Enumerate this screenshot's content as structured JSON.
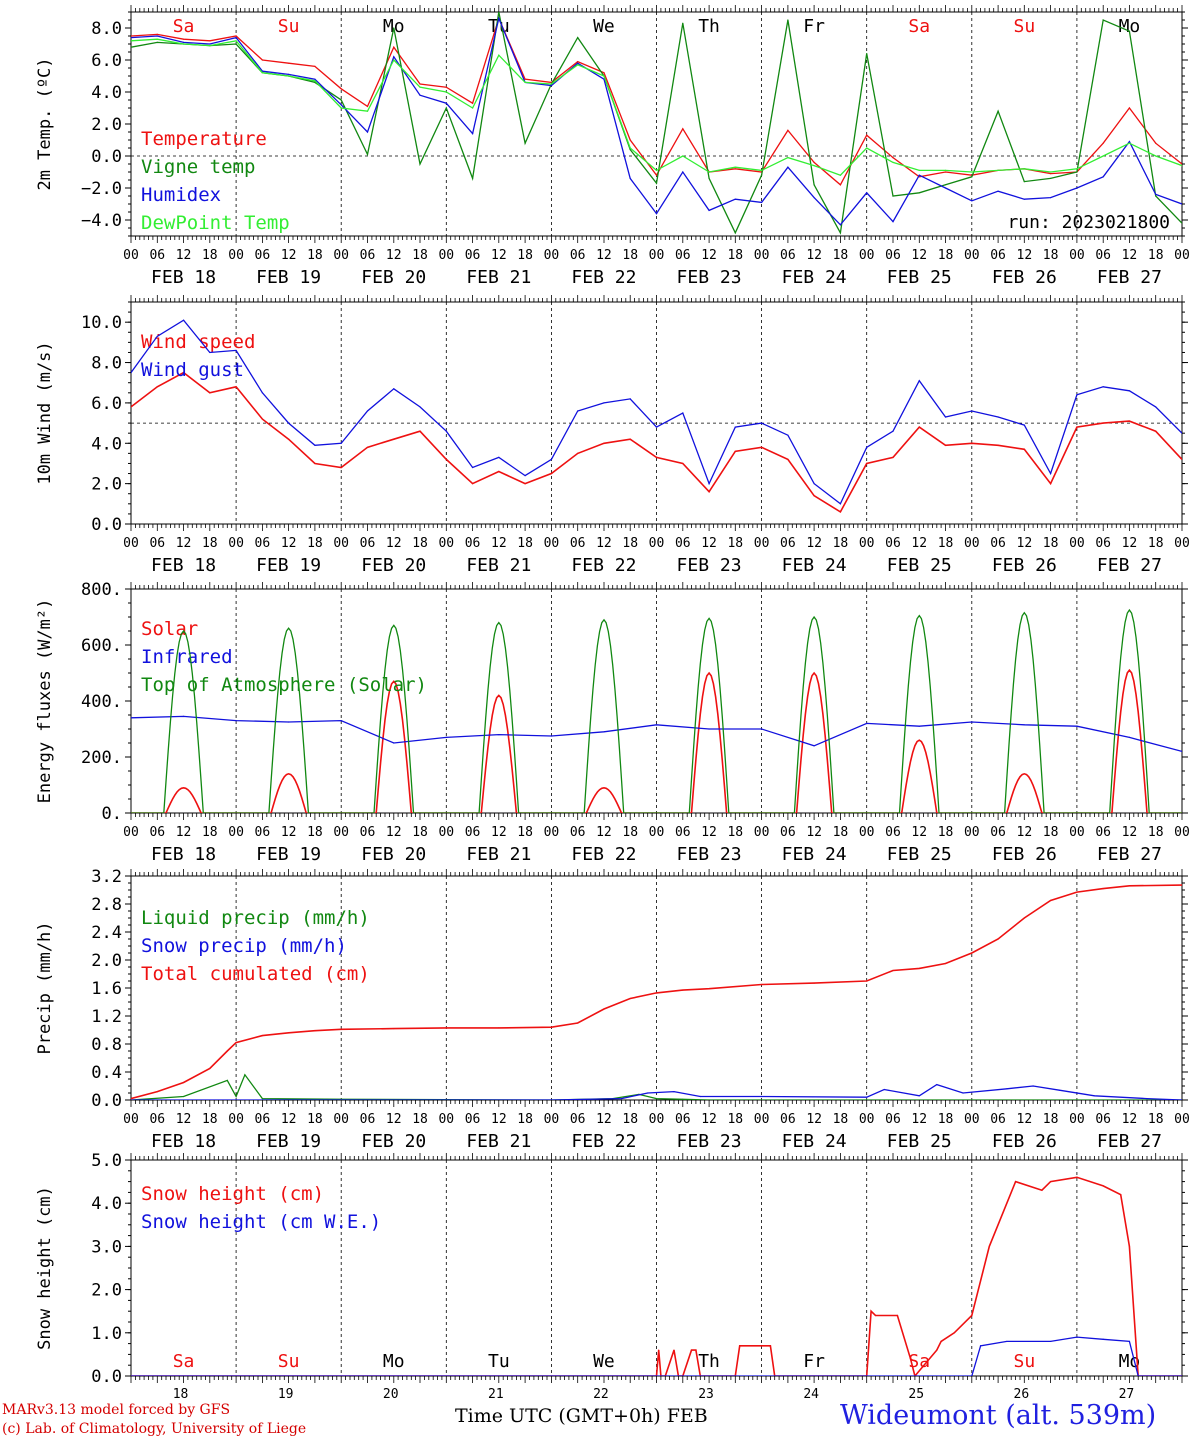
{
  "footer": {
    "credit_line1": "MARv3.13 model forced by GFS",
    "credit_line2": "(c) Lab. of Climatology, University of Liege",
    "x_title": "Time UTC (GMT+0h) FEB",
    "station": "Wideumont (alt. 539m)"
  },
  "colors": {
    "red": "#ee1111",
    "green": "#118811",
    "blue": "#1111dd",
    "lightgreen": "#33ee33",
    "weekend": "#ee1111"
  },
  "x_axis": {
    "hour_ticks": [
      "00",
      "06",
      "12",
      "18"
    ],
    "day_labels": [
      "FEB 18",
      "FEB 19",
      "FEB 20",
      "FEB 21",
      "FEB 22",
      "FEB 23",
      "FEB 24",
      "FEB 25",
      "FEB 26",
      "FEB 27"
    ],
    "weekdays": [
      "Sa",
      "Su",
      "Mo",
      "Tu",
      "We",
      "Th",
      "Fr",
      "Sa",
      "Su",
      "Mo"
    ],
    "weekend_flags": [
      true,
      true,
      false,
      false,
      false,
      false,
      false,
      true,
      true,
      false
    ],
    "day_numbers": [
      "18",
      "19",
      "20",
      "21",
      "22",
      "23",
      "24",
      "25",
      "26",
      "27"
    ]
  },
  "chart_data": [
    {
      "type": "line",
      "panel": "temperature",
      "ylabel": "2m Temp. (ºC)",
      "yticks": [
        "8.0",
        "6.0",
        "4.0",
        "2.0",
        "0.0",
        "−2.0",
        "−4.0"
      ],
      "ylim": [
        -5,
        9
      ],
      "x_unit": "hours since Feb 18 00 UTC",
      "xlim": [
        0,
        240
      ],
      "ref_line": 0,
      "annotation": "run: 2023021800",
      "series": [
        {
          "name": "Temperature",
          "color": "red",
          "x": [
            0,
            6,
            12,
            18,
            24,
            30,
            36,
            42,
            48,
            54,
            60,
            66,
            72,
            78,
            84,
            90,
            96,
            102,
            108,
            114,
            120,
            126,
            132,
            138,
            144,
            150,
            156,
            162,
            168,
            174,
            180,
            186,
            192,
            198,
            204,
            210,
            216,
            222,
            228,
            234,
            240
          ],
          "y": [
            7.5,
            7.6,
            7.3,
            7.2,
            7.5,
            6.0,
            5.8,
            5.6,
            4.2,
            3.1,
            6.8,
            4.5,
            4.3,
            3.3,
            8.6,
            4.8,
            4.6,
            5.9,
            5.2,
            1.0,
            -1.2,
            1.7,
            -1.0,
            -0.8,
            -1.0,
            1.6,
            -0.4,
            -1.8,
            1.3,
            -0.1,
            -1.3,
            -1.0,
            -1.2,
            -0.9,
            -0.8,
            -1.1,
            -1.0,
            0.8,
            3.0,
            0.8,
            -0.5
          ]
        },
        {
          "name": "Vigne temp",
          "color": "green",
          "x": [
            0,
            6,
            12,
            18,
            24,
            30,
            36,
            42,
            48,
            54,
            60,
            66,
            72,
            78,
            84,
            90,
            96,
            102,
            108,
            114,
            120,
            126,
            132,
            138,
            144,
            150,
            156,
            162,
            168,
            174,
            180,
            186,
            192,
            198,
            204,
            210,
            216,
            222,
            228,
            234,
            240
          ],
          "y": [
            6.8,
            7.1,
            7.0,
            6.9,
            7.0,
            5.2,
            5.0,
            4.6,
            3.5,
            0.1,
            8.0,
            -0.5,
            3.0,
            -1.4,
            9.0,
            0.8,
            4.5,
            7.4,
            5.0,
            0.4,
            -1.7,
            8.3,
            -1.4,
            -4.8,
            -1.2,
            8.5,
            -1.8,
            -4.8,
            6.4,
            -2.5,
            -2.3,
            -1.8,
            -1.3,
            2.8,
            -1.6,
            -1.4,
            -1.0,
            8.5,
            7.8,
            -2.5,
            -4.2
          ]
        },
        {
          "name": "Humidex",
          "color": "blue",
          "x": [
            0,
            6,
            12,
            18,
            24,
            30,
            36,
            42,
            48,
            54,
            60,
            66,
            72,
            78,
            84,
            90,
            96,
            102,
            108,
            114,
            120,
            126,
            132,
            138,
            144,
            150,
            156,
            162,
            168,
            174,
            180,
            186,
            192,
            198,
            204,
            210,
            216,
            222,
            228,
            234,
            240
          ],
          "y": [
            7.4,
            7.5,
            7.1,
            7.0,
            7.4,
            5.3,
            5.1,
            4.8,
            3.2,
            1.5,
            6.2,
            3.8,
            3.3,
            1.4,
            8.6,
            4.6,
            4.4,
            5.8,
            4.8,
            -1.4,
            -3.6,
            -1.0,
            -3.4,
            -2.7,
            -2.9,
            -0.7,
            -2.6,
            -4.3,
            -2.3,
            -4.1,
            -1.2,
            -2.0,
            -2.8,
            -2.2,
            -2.7,
            -2.6,
            -2.0,
            -1.3,
            0.9,
            -2.4,
            -3.0
          ]
        },
        {
          "name": "DewPoint Temp",
          "color": "lightgreen",
          "x": [
            0,
            6,
            12,
            18,
            24,
            30,
            36,
            42,
            48,
            54,
            60,
            66,
            72,
            78,
            84,
            90,
            96,
            102,
            108,
            114,
            120,
            126,
            132,
            138,
            144,
            150,
            156,
            162,
            168,
            174,
            180,
            186,
            192,
            198,
            204,
            210,
            216,
            222,
            228,
            234,
            240
          ],
          "y": [
            7.2,
            7.3,
            7.0,
            6.9,
            7.2,
            5.2,
            5.0,
            4.7,
            3.0,
            2.8,
            6.0,
            4.3,
            4.0,
            3.0,
            6.3,
            4.6,
            4.5,
            5.7,
            5.0,
            0.5,
            -0.9,
            0.0,
            -1.0,
            -0.7,
            -0.9,
            -0.1,
            -0.6,
            -1.2,
            0.5,
            -0.4,
            -0.9,
            -0.9,
            -1.0,
            -0.9,
            -0.8,
            -1.0,
            -0.8,
            0.0,
            0.8,
            0.0,
            -0.6
          ]
        }
      ]
    },
    {
      "type": "line",
      "panel": "wind",
      "ylabel": "10m Wind (m/s)",
      "yticks": [
        "10.0",
        "8.0",
        "6.0",
        "4.0",
        "2.0",
        "0.0"
      ],
      "ylim": [
        0,
        11
      ],
      "x_unit": "hours since Feb 18 00 UTC",
      "xlim": [
        0,
        240
      ],
      "ref_line": 5,
      "series": [
        {
          "name": "Wind speed",
          "color": "red",
          "x": [
            0,
            6,
            12,
            18,
            24,
            30,
            36,
            42,
            48,
            54,
            60,
            66,
            72,
            78,
            84,
            90,
            96,
            102,
            108,
            114,
            120,
            126,
            132,
            138,
            144,
            150,
            156,
            162,
            168,
            174,
            180,
            186,
            192,
            198,
            204,
            210,
            216,
            222,
            228,
            234,
            240
          ],
          "y": [
            5.8,
            6.8,
            7.5,
            6.5,
            6.8,
            5.2,
            4.2,
            3.0,
            2.8,
            3.8,
            4.2,
            4.6,
            3.2,
            2.0,
            2.6,
            2.0,
            2.5,
            3.5,
            4.0,
            4.2,
            3.3,
            3.0,
            1.6,
            3.6,
            3.8,
            3.2,
            1.4,
            0.6,
            3.0,
            3.3,
            4.8,
            3.9,
            4.0,
            3.9,
            3.7,
            2.0,
            4.8,
            5.0,
            5.1,
            4.6,
            3.2
          ]
        },
        {
          "name": "Wind gust",
          "color": "blue",
          "x": [
            0,
            6,
            12,
            18,
            24,
            30,
            36,
            42,
            48,
            54,
            60,
            66,
            72,
            78,
            84,
            90,
            96,
            102,
            108,
            114,
            120,
            126,
            132,
            138,
            144,
            150,
            156,
            162,
            168,
            174,
            180,
            186,
            192,
            198,
            204,
            210,
            216,
            222,
            228,
            234,
            240
          ],
          "y": [
            7.5,
            9.3,
            10.1,
            8.5,
            8.6,
            6.5,
            5.0,
            3.9,
            4.0,
            5.6,
            6.7,
            5.8,
            4.6,
            2.8,
            3.3,
            2.4,
            3.2,
            5.6,
            6.0,
            6.2,
            4.8,
            5.5,
            2.0,
            4.8,
            5.0,
            4.4,
            2.0,
            1.0,
            3.8,
            4.6,
            7.1,
            5.3,
            5.6,
            5.3,
            4.9,
            2.5,
            6.4,
            6.8,
            6.6,
            5.8,
            4.5
          ]
        }
      ]
    },
    {
      "type": "line",
      "panel": "energy",
      "ylabel": "Energy fluxes (W/m²)",
      "yticks": [
        "800.",
        "600.",
        "400.",
        "200.",
        "0."
      ],
      "ylim": [
        0,
        800
      ],
      "x_unit": "hours since Feb 18 00 UTC",
      "xlim": [
        0,
        240
      ],
      "series": [
        {
          "name": "Solar",
          "color": "red",
          "daily_peaks": [
            90,
            140,
            470,
            420,
            90,
            500,
            500,
            260,
            140,
            510
          ]
        },
        {
          "name": "Infrared",
          "color": "blue",
          "x": [
            0,
            12,
            24,
            36,
            48,
            60,
            72,
            84,
            96,
            108,
            120,
            132,
            144,
            156,
            168,
            180,
            192,
            204,
            216,
            228,
            240
          ],
          "y": [
            340,
            345,
            330,
            325,
            330,
            250,
            270,
            280,
            275,
            290,
            315,
            300,
            300,
            240,
            320,
            310,
            325,
            315,
            310,
            270,
            220
          ]
        },
        {
          "name": "Top of Atmosphere (Solar)",
          "color": "green",
          "daily_peaks": [
            650,
            660,
            670,
            680,
            690,
            695,
            700,
            705,
            715,
            725
          ]
        }
      ]
    },
    {
      "type": "line",
      "panel": "precip",
      "ylabel": "Precip (mm/h)",
      "yticks": [
        "3.2",
        "2.8",
        "2.4",
        "2.0",
        "1.6",
        "1.2",
        "0.8",
        "0.4",
        "0.0"
      ],
      "ylim": [
        0,
        3.2
      ],
      "x_unit": "hours since Feb 18 00 UTC",
      "xlim": [
        0,
        240
      ],
      "series": [
        {
          "name": "Liquid precip (mm/h)",
          "color": "green",
          "x": [
            0,
            12,
            22,
            24,
            26,
            30,
            48,
            96,
            110,
            116,
            120,
            126,
            132,
            144,
            168,
            192,
            216,
            240
          ],
          "y": [
            0.0,
            0.05,
            0.28,
            0.05,
            0.36,
            0.02,
            0.01,
            0.0,
            0.02,
            0.08,
            0.02,
            0.01,
            0.0,
            0.0,
            0.0,
            0.0,
            0.0,
            0.0
          ]
        },
        {
          "name": "Snow precip (mm/h)",
          "color": "blue",
          "x": [
            0,
            96,
            112,
            118,
            124,
            130,
            144,
            168,
            172,
            180,
            184,
            190,
            200,
            206,
            212,
            220,
            232,
            240
          ],
          "y": [
            0,
            0,
            0.02,
            0.1,
            0.12,
            0.05,
            0.05,
            0.04,
            0.15,
            0.06,
            0.22,
            0.1,
            0.16,
            0.2,
            0.14,
            0.06,
            0.02,
            0.0
          ]
        },
        {
          "name": "Total cumulated (cm)",
          "color": "red",
          "x": [
            0,
            6,
            12,
            18,
            22,
            24,
            30,
            36,
            42,
            48,
            60,
            72,
            84,
            96,
            102,
            108,
            114,
            120,
            126,
            132,
            144,
            156,
            168,
            174,
            180,
            186,
            192,
            198,
            204,
            210,
            216,
            222,
            228,
            240
          ],
          "y": [
            0.02,
            0.12,
            0.25,
            0.45,
            0.7,
            0.82,
            0.92,
            0.96,
            0.99,
            1.01,
            1.02,
            1.03,
            1.03,
            1.04,
            1.1,
            1.3,
            1.45,
            1.53,
            1.57,
            1.59,
            1.65,
            1.67,
            1.7,
            1.85,
            1.88,
            1.95,
            2.1,
            2.3,
            2.6,
            2.85,
            2.97,
            3.02,
            3.06,
            3.07
          ]
        }
      ]
    },
    {
      "type": "line",
      "panel": "snow",
      "ylabel": "Snow height (cm)",
      "yticks": [
        "5.0",
        "4.0",
        "3.0",
        "2.0",
        "1.0",
        "0.0"
      ],
      "ylim": [
        0,
        5
      ],
      "x_unit": "hours since Feb 18 00 UTC",
      "xlim": [
        0,
        240
      ],
      "series": [
        {
          "name": "Snow height (cm)",
          "color": "red",
          "x": [
            0,
            120,
            120.5,
            121,
            122,
            124,
            125,
            126,
            128,
            129,
            130,
            131,
            138,
            139,
            146,
            147,
            168,
            169,
            170,
            175,
            178,
            179,
            184,
            185,
            188,
            192,
            196,
            202,
            208,
            210,
            216,
            222,
            226,
            228,
            230,
            240
          ],
          "y": [
            0,
            0,
            0.6,
            0,
            0,
            0.6,
            0,
            0,
            0.6,
            0.6,
            0,
            0,
            0,
            0.7,
            0.7,
            0,
            0,
            1.5,
            1.4,
            1.4,
            0.4,
            0,
            0.6,
            0.8,
            1.0,
            1.4,
            3.0,
            4.5,
            4.3,
            4.5,
            4.6,
            4.4,
            4.2,
            3.0,
            0,
            0
          ]
        },
        {
          "name": "Snow height (cm W.E.)",
          "color": "blue",
          "x": [
            0,
            192,
            194,
            200,
            210,
            216,
            222,
            228,
            230,
            240
          ],
          "y": [
            0,
            0,
            0.7,
            0.8,
            0.8,
            0.9,
            0.85,
            0.8,
            0,
            0
          ]
        }
      ]
    }
  ]
}
